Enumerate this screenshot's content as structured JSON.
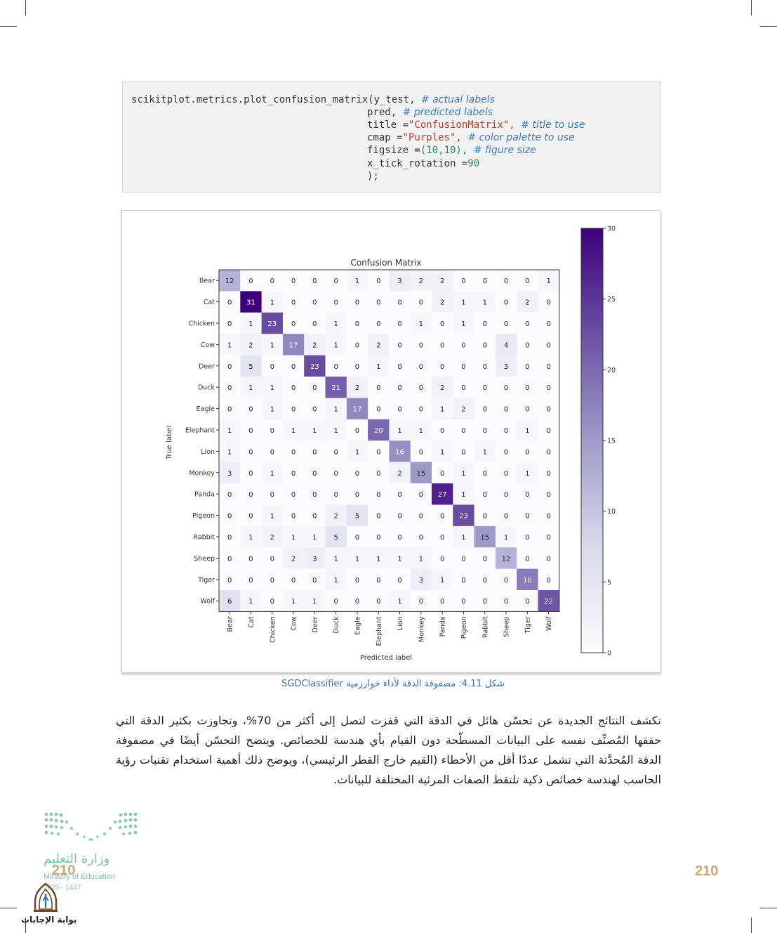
{
  "code": {
    "lines": [
      {
        "code": "scikitplot.metrics.plot_confusion_matrix(y_test,",
        "comment": "# actual labels"
      },
      {
        "code": "pred,",
        "comment": "# predicted labels"
      },
      {
        "code": "title =",
        "str": "\"ConfusionMatrix\",",
        "comment": "# title to use"
      },
      {
        "code": "cmap =",
        "str": "\"Purples\",",
        "comment": "# color palette to use"
      },
      {
        "code": "figsize =",
        "num": "(10,10),",
        "comment": "# figure size"
      },
      {
        "code": "x_tick_rotation =",
        "num": "90",
        "comment": ""
      },
      {
        "code": ");",
        "comment": ""
      }
    ]
  },
  "chart_data": {
    "type": "heatmap",
    "title": "Confusion Matrix",
    "xlabel": "Predicted label",
    "ylabel": "True label",
    "cmap": "Purples",
    "labels": [
      "Bear",
      "Cat",
      "Chicken",
      "Cow",
      "Deer",
      "Duck",
      "Eagle",
      "Elephant",
      "Lion",
      "Monkey",
      "Panda",
      "Pigeon",
      "Rabbit",
      "Sheep",
      "Tiger",
      "Wolf"
    ],
    "matrix": [
      [
        12,
        0,
        0,
        0,
        0,
        0,
        1,
        0,
        3,
        2,
        2,
        0,
        0,
        0,
        0,
        1
      ],
      [
        0,
        31,
        1,
        0,
        0,
        0,
        0,
        0,
        0,
        0,
        2,
        1,
        1,
        0,
        2,
        0
      ],
      [
        0,
        1,
        23,
        0,
        0,
        1,
        0,
        0,
        0,
        1,
        0,
        1,
        0,
        0,
        0,
        0
      ],
      [
        1,
        2,
        1,
        17,
        2,
        1,
        0,
        2,
        0,
        0,
        0,
        0,
        0,
        4,
        0,
        0
      ],
      [
        0,
        5,
        0,
        0,
        23,
        0,
        0,
        1,
        0,
        0,
        0,
        0,
        0,
        3,
        0,
        0
      ],
      [
        0,
        1,
        1,
        0,
        0,
        21,
        2,
        0,
        0,
        0,
        2,
        0,
        0,
        0,
        0,
        0
      ],
      [
        0,
        0,
        1,
        0,
        0,
        1,
        17,
        0,
        0,
        0,
        1,
        2,
        0,
        0,
        0,
        0
      ],
      [
        1,
        0,
        0,
        1,
        1,
        1,
        0,
        20,
        1,
        1,
        0,
        0,
        0,
        0,
        1,
        0
      ],
      [
        1,
        0,
        0,
        0,
        0,
        0,
        1,
        0,
        16,
        0,
        1,
        0,
        1,
        0,
        0,
        0
      ],
      [
        3,
        0,
        1,
        0,
        0,
        0,
        0,
        0,
        2,
        15,
        0,
        1,
        0,
        0,
        1,
        0
      ],
      [
        0,
        0,
        0,
        0,
        0,
        0,
        0,
        0,
        0,
        0,
        27,
        1,
        0,
        0,
        0,
        0
      ],
      [
        0,
        0,
        1,
        0,
        0,
        2,
        5,
        0,
        0,
        0,
        0,
        23,
        0,
        0,
        0,
        0
      ],
      [
        0,
        1,
        2,
        1,
        1,
        5,
        0,
        0,
        0,
        0,
        0,
        1,
        15,
        1,
        0,
        0
      ],
      [
        0,
        0,
        0,
        2,
        3,
        1,
        1,
        1,
        1,
        1,
        0,
        0,
        0,
        12,
        0,
        0
      ],
      [
        0,
        0,
        0,
        0,
        0,
        1,
        0,
        0,
        0,
        3,
        1,
        0,
        0,
        0,
        18,
        0
      ],
      [
        6,
        1,
        0,
        1,
        1,
        0,
        0,
        0,
        1,
        0,
        0,
        0,
        0,
        0,
        0,
        22
      ]
    ],
    "colorbar": {
      "min": 0,
      "max": 30,
      "ticks": [
        0,
        5,
        10,
        15,
        20,
        25,
        30
      ]
    }
  },
  "caption": "شكل 4.11: مصفوفة الدقة لأداء خوارزمية SGDClassifier",
  "paragraph": "تكشف النتائج الجديدة عن تحسّن هائل في الدقة التي قفزت لتصل إلى أكثر من 70%، وتجاوزت بكثير الدقة التي حققها المُصنِّف نفسه على البيانات المسطّحة دون القيام بأي هندسة للخصائص. ويتضح التحسّن أيضًا في مصفوفة الدقة المُحدَّثة التي تشمل عددًا أقل من الأخطاء (القيم خارج القطر الرئيسي)، ويوضح ذلك أهمية استخدام تقنيات رؤية الحاسب لهندسة خصائص ذكية تلتقط الصفات المرئية المختلفة للبيانات.",
  "page_number": "210",
  "ministry": {
    "arabic": "وزارة التعليم",
    "english": "Ministry of Education",
    "year": "2025 - 1447"
  },
  "portal_label": "بوابة الإجابات"
}
